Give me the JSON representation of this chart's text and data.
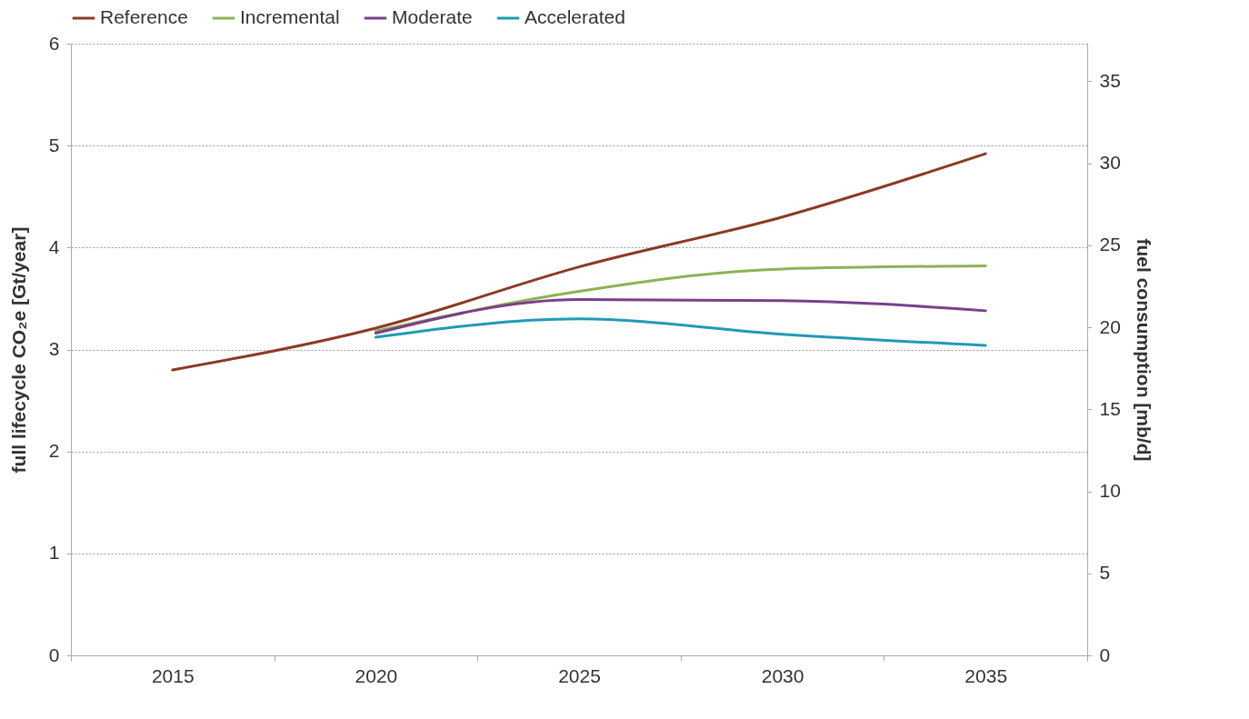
{
  "chart_data": {
    "type": "line",
    "categories": [
      "2015",
      "2020",
      "2025",
      "2030",
      "2035"
    ],
    "series": [
      {
        "name": "Reference",
        "color": "#8b3a22",
        "values": [
          2.8,
          3.21,
          3.81,
          4.3,
          4.92
        ]
      },
      {
        "name": "Incremental",
        "color": "#8db255",
        "values": [
          null,
          3.18,
          3.57,
          3.79,
          3.82
        ]
      },
      {
        "name": "Moderate",
        "color": "#7b3f8c",
        "values": [
          null,
          3.16,
          3.49,
          3.48,
          3.38
        ]
      },
      {
        "name": "Accelerated",
        "color": "#1f9bb5",
        "values": [
          null,
          3.12,
          3.3,
          3.15,
          3.04
        ]
      }
    ],
    "ylabel": "full lifecycle CO₂e [Gt/year]",
    "y2label": "fuel consumption [mb/d]",
    "ylim": [
      0,
      6
    ],
    "yticks": [
      0,
      1,
      2,
      3,
      4,
      5,
      6
    ],
    "y2lim": [
      0,
      37.3
    ],
    "y2ticks": [
      0,
      5,
      10,
      15,
      20,
      25,
      30,
      35
    ],
    "grid": "y",
    "legend": "top"
  }
}
